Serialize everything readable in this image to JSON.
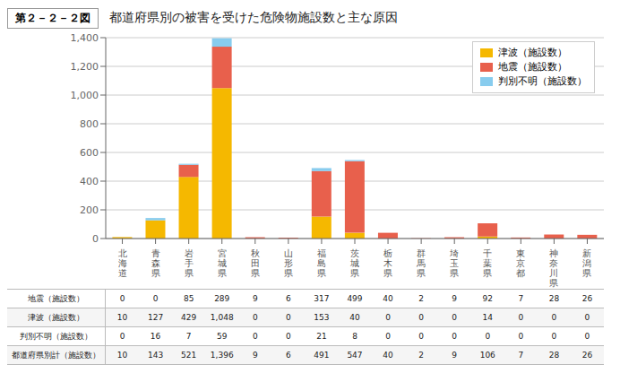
{
  "chart_data": {
    "type": "bar",
    "title": "都道府県別の被害を受けた危険物施設数と主な原因",
    "figure_label": "第２－２－２図",
    "categories": [
      "北\n海\n道",
      "青\n森\n県",
      "岩\n手\n県",
      "宮\n城\n県",
      "秋\n田\n県",
      "山\n形\n県",
      "福\n島\n県",
      "茨\n城\n県",
      "栃\n木\n県",
      "群\n馬\n県",
      "埼\n玉\n県",
      "千\n葉\n県",
      "東\n京\n都",
      "神\n奈\n川\n県",
      "新\n潟\n県"
    ],
    "series": [
      {
        "name": "津波（施設数）",
        "color": "#F5B800",
        "values": [
          10,
          127,
          429,
          1048,
          0,
          0,
          153,
          40,
          0,
          0,
          0,
          14,
          0,
          0,
          0
        ]
      },
      {
        "name": "地震（施設数）",
        "color": "#E8604C",
        "values": [
          0,
          0,
          85,
          289,
          9,
          6,
          317,
          499,
          40,
          2,
          9,
          92,
          7,
          28,
          26
        ]
      },
      {
        "name": "判別不明（施設数）",
        "color": "#88CCEE",
        "values": [
          0,
          16,
          7,
          59,
          0,
          0,
          21,
          8,
          0,
          0,
          0,
          0,
          0,
          0,
          0
        ]
      }
    ],
    "stacked": true,
    "ylim": [
      0,
      1400
    ],
    "yticks": [
      0,
      200,
      400,
      600,
      800,
      {
        "value": 1000,
        "label": "1,000"
      },
      {
        "value": 1200,
        "label": "1,200"
      },
      {
        "value": 1400,
        "label": "1,400"
      }
    ],
    "grid": true,
    "legend": "upper right",
    "table": [
      {
        "label": "地震（施設数）",
        "values": [
          0,
          0,
          85,
          289,
          9,
          6,
          317,
          499,
          40,
          2,
          9,
          92,
          7,
          28,
          26
        ]
      },
      {
        "label": "津波（施設数）",
        "values": [
          10,
          127,
          429,
          1048,
          0,
          0,
          153,
          40,
          0,
          0,
          0,
          14,
          0,
          0,
          0
        ]
      },
      {
        "label": "判別不明（施設数）",
        "values": [
          0,
          16,
          7,
          59,
          0,
          0,
          21,
          8,
          0,
          0,
          0,
          0,
          0,
          0,
          0
        ]
      },
      {
        "label": "都道府県別計（施設数）",
        "values": [
          10,
          143,
          521,
          1396,
          9,
          6,
          491,
          547,
          40,
          2,
          9,
          106,
          7,
          28,
          26
        ]
      }
    ]
  }
}
